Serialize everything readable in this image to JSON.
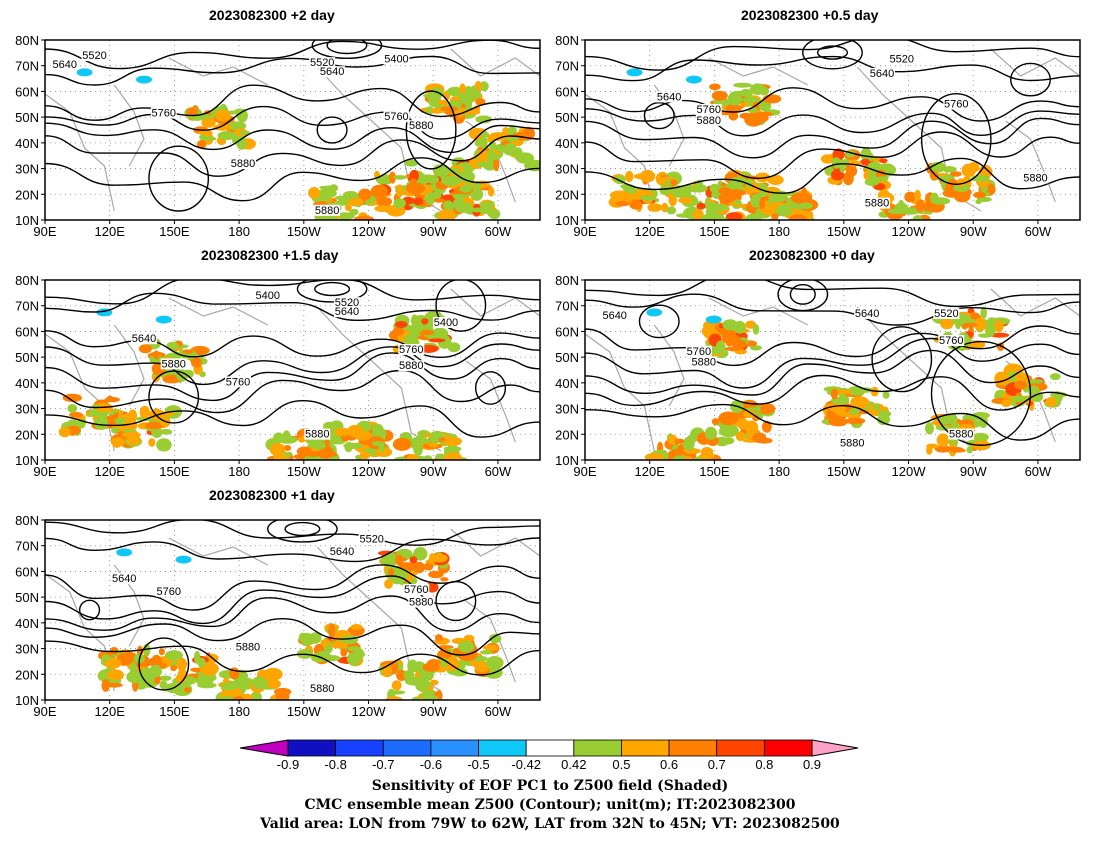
{
  "panels": [
    {
      "title": "2023082300 +2 day"
    },
    {
      "title": "2023082300 +0.5 day"
    },
    {
      "title": "2023082300 +1.5 day"
    },
    {
      "title": "2023082300 +0 day"
    },
    {
      "title": "2023082300 +1 day"
    }
  ],
  "axes": {
    "lat_labels": [
      "80N",
      "70N",
      "60N",
      "50N",
      "40N",
      "30N",
      "20N",
      "10N"
    ],
    "lon_labels": [
      "90E",
      "120E",
      "150E",
      "180",
      "150W",
      "120W",
      "90W",
      "60W"
    ]
  },
  "contour_labels": {
    "p0": [
      "5520",
      "5640",
      "5520",
      "5640",
      "5400",
      "5760",
      "5760",
      "5880",
      "5880",
      "5880"
    ],
    "p1": [
      "5520",
      "5640",
      "5640",
      "5760",
      "5880",
      "5760",
      "5880",
      "5880"
    ],
    "p2": [
      "5400",
      "5520",
      "5640",
      "5640",
      "5880",
      "5760",
      "5400",
      "5760",
      "5880",
      "5880"
    ],
    "p3": [
      "5640",
      "5640",
      "5520",
      "5760",
      "5760",
      "5880",
      "5880",
      "5880"
    ],
    "p4": [
      "5520",
      "5640",
      "5640",
      "5760",
      "5760",
      "5880",
      "5880",
      "5880"
    ]
  },
  "colorbar": {
    "tick_labels": [
      "-0.9",
      "-0.8",
      "-0.7",
      "-0.6",
      "-0.5",
      "-0.42",
      "0.42",
      "0.5",
      "0.6",
      "0.7",
      "0.8",
      "0.9"
    ],
    "colors": [
      "#c000c0",
      "#1010c0",
      "#1840ff",
      "#1e6cff",
      "#2a90ff",
      "#10c8f8",
      "#ffffff",
      "#9acd32",
      "#ffa500",
      "#ff7f00",
      "#ff4500",
      "#ff0000",
      "#ffa0c8"
    ]
  },
  "caption": {
    "line1": "Sensitivity of EOF PC1 to Z500 field (Shaded)",
    "line2": "CMC ensemble mean Z500 (Contour); unit(m); IT:2023082300",
    "line3": "Valid area: LON from 79W to 62W, LAT from 32N to 45N; VT: 2023082500"
  }
}
